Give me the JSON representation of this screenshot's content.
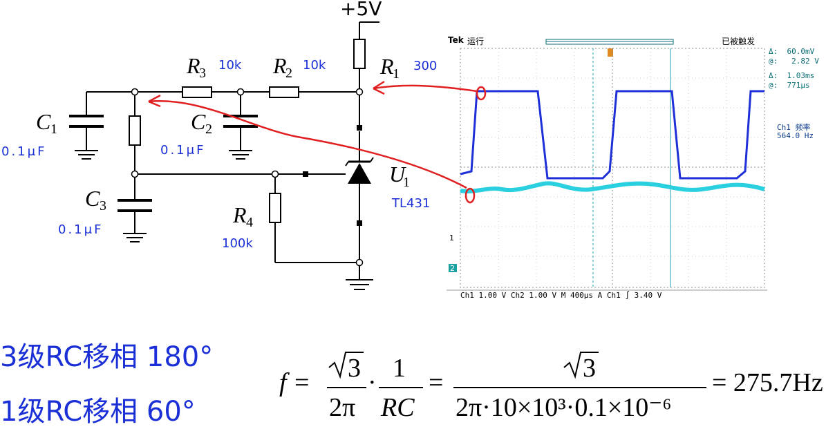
{
  "supply": "+5V",
  "components": {
    "R1": {
      "letter": "R",
      "sub": "1",
      "value": "300"
    },
    "R2": {
      "letter": "R",
      "sub": "2",
      "value": "10k"
    },
    "R3": {
      "letter": "R",
      "sub": "3",
      "value": "10k"
    },
    "R4": {
      "letter": "R",
      "sub": "4",
      "value": "100k"
    },
    "C1": {
      "letter": "C",
      "sub": "1",
      "value": "0.1μF"
    },
    "C2": {
      "letter": "C",
      "sub": "2",
      "value": "0.1μF"
    },
    "C3": {
      "letter": "C",
      "sub": "3",
      "value": "0.1μF"
    },
    "U1": {
      "letter": "U",
      "sub": "1",
      "value": "TL431"
    }
  },
  "scope": {
    "brand": "Tek",
    "run_state": "运行",
    "trigger_state": "已被触发",
    "cursor1_delta": "Δ:  60.0mV",
    "cursor1_at": "@:   2.82 V",
    "cursor2_delta": "Δ:  1.03ms",
    "cursor2_at": "@:  771μs",
    "freq_label": "Ch1 频率",
    "freq_value": "564.0 Hz",
    "ch1_marker": "1",
    "ch2_marker": "2",
    "bottom_bar": "Ch1  1.00 V   Ch2  1.00 V   M 400μs  A  Ch1 ∫  3.40 V",
    "colors": {
      "ch1": "#1f2fd8",
      "ch2": "#2ad0e0",
      "annotation": "#e02020"
    }
  },
  "phase_lines": {
    "line1": "3级RC移相 180°",
    "line2": "1级RC移相 60°"
  },
  "formula": {
    "f": "f",
    "sqrt3": "3",
    "two_pi": "2π",
    "one": "1",
    "rc": "RC",
    "denominator": "2π·10×10³·0.1×10⁻⁶",
    "result": "= 275.7Hz"
  }
}
